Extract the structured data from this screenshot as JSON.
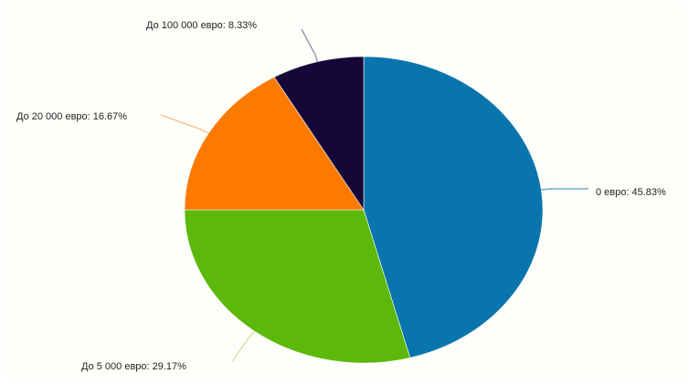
{
  "chart_data": {
    "type": "pie",
    "title": "",
    "slices": [
      {
        "label": "0 евро: 45.83%",
        "value": 45.83,
        "color": "#0a75ad",
        "leader_color": "#6aaccc"
      },
      {
        "label": "До 5 000 евро: 29.17%",
        "value": 29.17,
        "color": "#5cb80a",
        "leader_color": "#d8e2a8"
      },
      {
        "label": "До 20 000 евро: 16.67%",
        "value": 16.67,
        "color": "#fc7a00",
        "leader_color": "#f0c890"
      },
      {
        "label": "До 100 000 евро: 8.33%",
        "value": 8.33,
        "color": "#150838",
        "leader_color": "#9a9ab0"
      }
    ],
    "start_angle": "12 o'clock",
    "direction": "clockwise",
    "legend": "none"
  }
}
